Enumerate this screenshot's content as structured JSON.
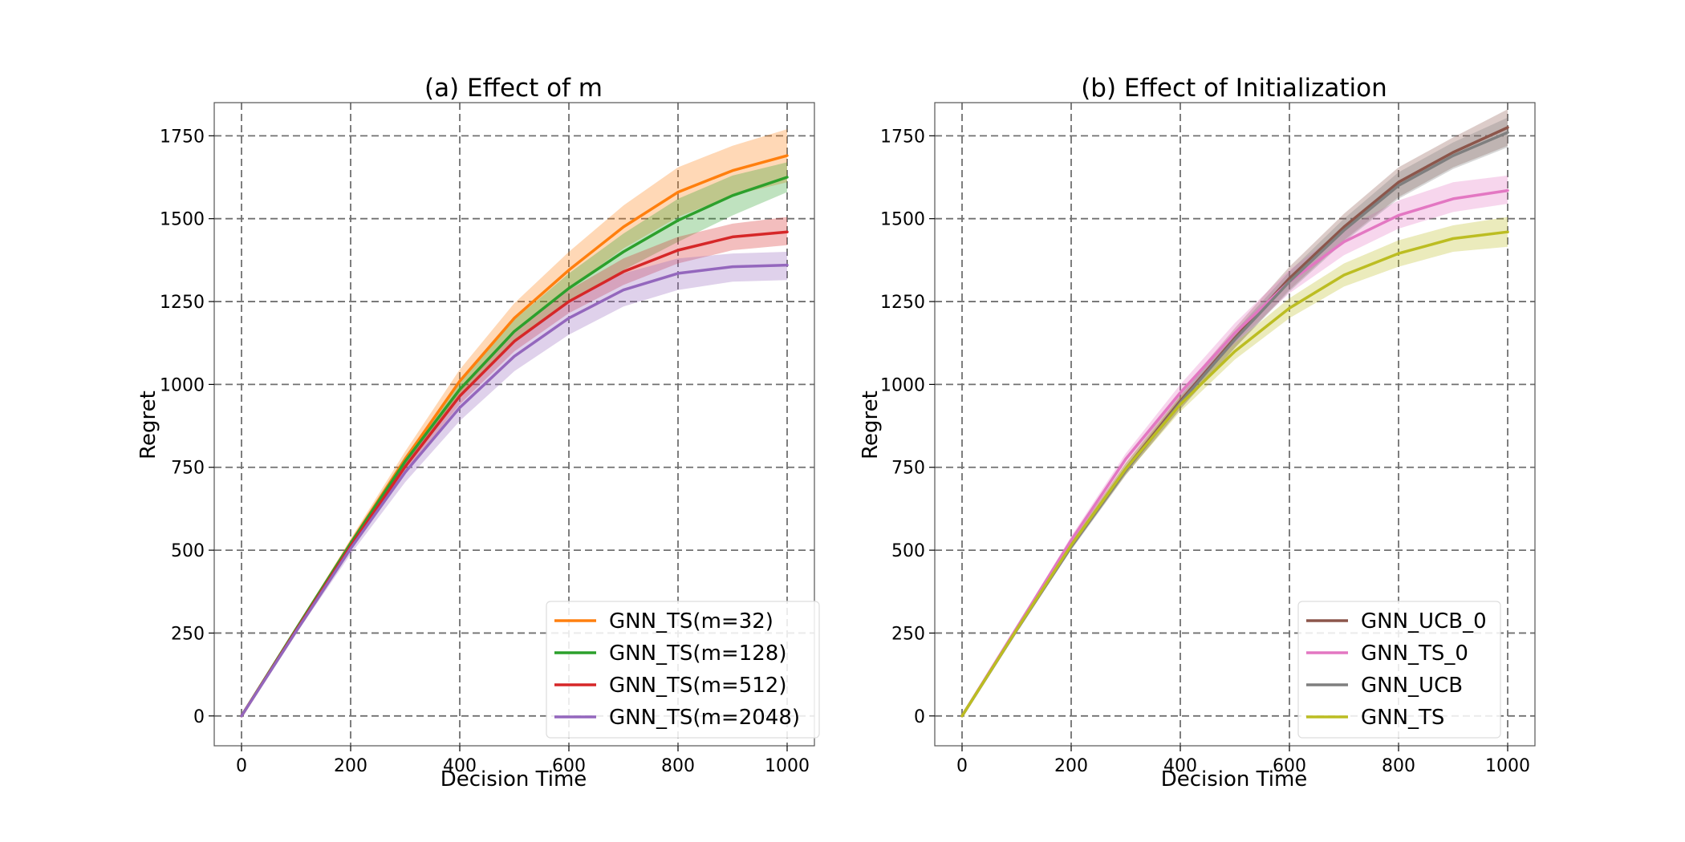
{
  "chart_data": [
    {
      "type": "line",
      "title": "(a) Effect of m",
      "xlabel": "Decision Time",
      "ylabel": "Regret",
      "xlim": [
        -50,
        1050
      ],
      "ylim": [
        -90,
        1850
      ],
      "xticks": [
        0,
        200,
        400,
        600,
        800,
        1000
      ],
      "xtick_labels": [
        "0",
        "200",
        "400",
        "600",
        "800",
        "1000"
      ],
      "yticks": [
        0,
        250,
        500,
        750,
        1000,
        1250,
        1500,
        1750
      ],
      "ytick_labels": [
        "0",
        "250",
        "500",
        "750",
        "1000",
        "1250",
        "1500",
        "1750"
      ],
      "grid": true,
      "legend_position": "lower right",
      "x": [
        0,
        100,
        200,
        300,
        400,
        500,
        600,
        700,
        800,
        900,
        1000
      ],
      "series": [
        {
          "name": "GNN_TS(m=32)",
          "color": "#ff7f0e",
          "values": [
            0,
            262,
            522,
            775,
            1010,
            1200,
            1345,
            1475,
            1580,
            1645,
            1690
          ],
          "lower": [
            0,
            258,
            510,
            752,
            975,
            1155,
            1290,
            1410,
            1505,
            1570,
            1610
          ],
          "upper": [
            0,
            266,
            534,
            798,
            1045,
            1245,
            1400,
            1540,
            1655,
            1720,
            1770
          ]
        },
        {
          "name": "GNN_TS(m=128)",
          "color": "#2ca02c",
          "values": [
            0,
            262,
            520,
            768,
            985,
            1160,
            1290,
            1400,
            1495,
            1570,
            1625
          ],
          "lower": [
            0,
            258,
            510,
            752,
            960,
            1125,
            1245,
            1345,
            1430,
            1510,
            1580
          ],
          "upper": [
            0,
            266,
            530,
            784,
            1010,
            1195,
            1335,
            1455,
            1560,
            1630,
            1670
          ]
        },
        {
          "name": "GNN_TS(m=512)",
          "color": "#d62728",
          "values": [
            0,
            258,
            512,
            752,
            965,
            1130,
            1250,
            1340,
            1405,
            1445,
            1460
          ],
          "lower": [
            0,
            254,
            502,
            736,
            940,
            1100,
            1215,
            1300,
            1365,
            1405,
            1420
          ],
          "upper": [
            0,
            262,
            522,
            768,
            990,
            1160,
            1285,
            1380,
            1445,
            1485,
            1505
          ]
        },
        {
          "name": "GNN_TS(m=2048)",
          "color": "#9467bd",
          "values": [
            0,
            255,
            505,
            735,
            930,
            1085,
            1200,
            1285,
            1335,
            1355,
            1360
          ],
          "lower": [
            0,
            248,
            488,
            705,
            890,
            1040,
            1150,
            1235,
            1285,
            1310,
            1315
          ],
          "upper": [
            0,
            262,
            522,
            765,
            970,
            1130,
            1250,
            1335,
            1380,
            1395,
            1400
          ]
        }
      ]
    },
    {
      "type": "line",
      "title": "(b) Effect of Initialization",
      "xlabel": "Decision Time",
      "ylabel": "Regret",
      "xlim": [
        -50,
        1050
      ],
      "ylim": [
        -90,
        1850
      ],
      "xticks": [
        0,
        200,
        400,
        600,
        800,
        1000
      ],
      "xtick_labels": [
        "0",
        "200",
        "400",
        "600",
        "800",
        "1000"
      ],
      "yticks": [
        0,
        250,
        500,
        750,
        1000,
        1250,
        1500,
        1750
      ],
      "ytick_labels": [
        "0",
        "250",
        "500",
        "750",
        "1000",
        "1250",
        "1500",
        "1750"
      ],
      "grid": true,
      "legend_position": "lower right",
      "x": [
        0,
        100,
        200,
        300,
        400,
        500,
        600,
        700,
        800,
        900,
        1000
      ],
      "series": [
        {
          "name": "GNN_UCB_0",
          "color": "#8c564b",
          "values": [
            0,
            260,
            515,
            745,
            950,
            1140,
            1320,
            1475,
            1610,
            1700,
            1775
          ],
          "lower": [
            0,
            255,
            503,
            728,
            925,
            1110,
            1285,
            1435,
            1565,
            1655,
            1720
          ],
          "upper": [
            0,
            265,
            527,
            762,
            975,
            1170,
            1355,
            1515,
            1655,
            1745,
            1830
          ]
        },
        {
          "name": "GNN_TS_0",
          "color": "#e377c2",
          "values": [
            0,
            265,
            530,
            775,
            975,
            1155,
            1310,
            1430,
            1510,
            1560,
            1585
          ],
          "lower": [
            0,
            260,
            518,
            758,
            950,
            1125,
            1275,
            1390,
            1470,
            1520,
            1545
          ],
          "upper": [
            0,
            270,
            542,
            792,
            1000,
            1185,
            1345,
            1470,
            1555,
            1610,
            1630
          ]
        },
        {
          "name": "GNN_UCB",
          "color": "#7f7f7f",
          "values": [
            0,
            258,
            510,
            740,
            945,
            1135,
            1310,
            1465,
            1600,
            1690,
            1760
          ],
          "lower": [
            0,
            253,
            500,
            726,
            925,
            1110,
            1280,
            1430,
            1560,
            1650,
            1715
          ],
          "upper": [
            0,
            263,
            520,
            754,
            965,
            1160,
            1340,
            1500,
            1640,
            1730,
            1805
          ]
        },
        {
          "name": "GNN_TS",
          "color": "#bcbd22",
          "values": [
            0,
            260,
            515,
            745,
            940,
            1100,
            1230,
            1330,
            1395,
            1440,
            1460
          ],
          "lower": [
            0,
            255,
            505,
            728,
            918,
            1075,
            1200,
            1295,
            1355,
            1400,
            1415
          ],
          "upper": [
            0,
            265,
            525,
            762,
            962,
            1125,
            1260,
            1365,
            1435,
            1480,
            1505
          ]
        }
      ]
    }
  ]
}
